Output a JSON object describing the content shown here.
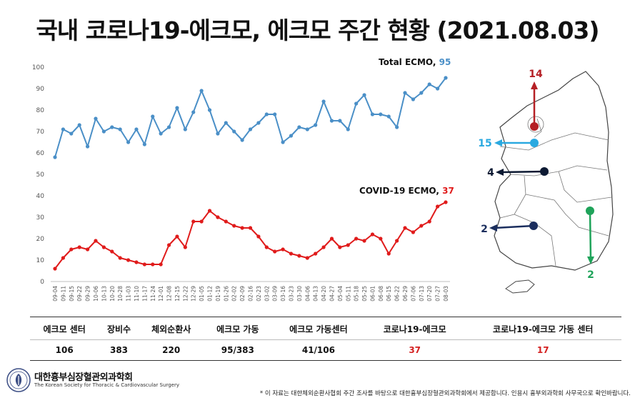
{
  "title": "국내 코로나19-에크모, 에크모 주간 현황 (2021.08.03)",
  "chart_data": {
    "type": "line",
    "ylim": [
      0,
      100
    ],
    "yticks": [
      0,
      10,
      20,
      30,
      40,
      50,
      60,
      70,
      80,
      90,
      100
    ],
    "categories": [
      "09-04",
      "09-11",
      "09-15",
      "09-22",
      "09-29",
      "10-06",
      "10-13",
      "10-20",
      "10-28",
      "11-03",
      "11-10",
      "11-17",
      "11-24",
      "12-01",
      "12-08",
      "12-15",
      "12-22",
      "12-29",
      "01-05",
      "01-12",
      "01-19",
      "01-26",
      "02-02",
      "02-09",
      "02-16",
      "02-23",
      "03-02",
      "03-09",
      "03-16",
      "03-23",
      "03-30",
      "04-06",
      "04-13",
      "04-20",
      "04-27",
      "05-04",
      "05-11",
      "05-18",
      "05-25",
      "06-01",
      "06-08",
      "06-15",
      "06-22",
      "06-29",
      "07-06",
      "07-13",
      "07-20",
      "07-27",
      "08-03"
    ],
    "series": [
      {
        "name": "Total ECMO",
        "latest": "95",
        "color": "#4a8fc7",
        "values": [
          58,
          71,
          69,
          73,
          63,
          76,
          70,
          72,
          71,
          65,
          71,
          64,
          77,
          69,
          72,
          81,
          71,
          79,
          89,
          80,
          69,
          74,
          70,
          66,
          71,
          74,
          78,
          78,
          65,
          68,
          72,
          71,
          73,
          84,
          75,
          75,
          71,
          83,
          87,
          78,
          78,
          77,
          72,
          88,
          85,
          88,
          92,
          90,
          95
        ]
      },
      {
        "name": "COVID-19 ECMO",
        "latest": "37",
        "color": "#e01b1b",
        "values": [
          6,
          11,
          15,
          16,
          15,
          19,
          16,
          14,
          11,
          10,
          9,
          8,
          8,
          8,
          17,
          21,
          16,
          28,
          28,
          33,
          30,
          28,
          26,
          25,
          25,
          21,
          16,
          14,
          15,
          13,
          12,
          11,
          13,
          16,
          20,
          16,
          17,
          20,
          19,
          22,
          20,
          13,
          19,
          25,
          23,
          26,
          28,
          35,
          37
        ]
      }
    ]
  },
  "map": {
    "markers": [
      {
        "value": "14",
        "color": "#b52025"
      },
      {
        "value": "15",
        "color": "#2aa9e0"
      },
      {
        "value": "4",
        "color": "#0d1a33"
      },
      {
        "value": "2",
        "color": "#1b2e5e"
      },
      {
        "value": "2",
        "color": "#1fa35a"
      }
    ]
  },
  "stats": {
    "headers": [
      "에크모 센터",
      "장비수",
      "체외순환사",
      "에크모 가동",
      "에크모 가동센터",
      "코로나19-에크모",
      "코로나19-에크모 가동 센터"
    ],
    "values": [
      "106",
      "383",
      "220",
      "95/383",
      "41/106",
      "37",
      "17"
    ]
  },
  "org": {
    "name_ko": "대한흉부심장혈관외과학회",
    "name_en": "The Korean Society for Thoracic & Cardiovascular Surgery"
  },
  "footnote": "* 이 자료는 대한체외순환사협회 주간 조사를 바탕으로 대한흉부심장혈관외과학회에서 제공합니다. 인용시 흉부외과학회 사무국으로 확인바랍니다."
}
